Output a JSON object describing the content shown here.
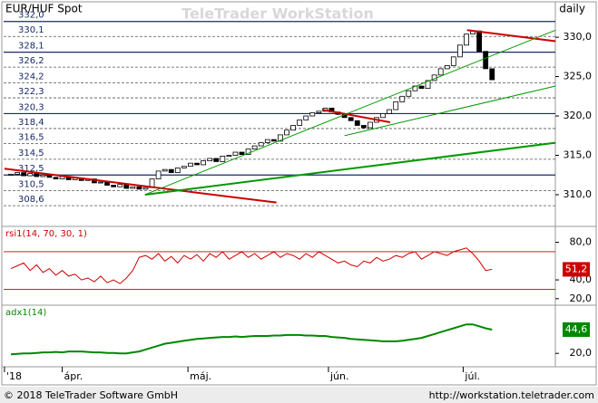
{
  "chart_data": {
    "type": "candlestick",
    "title": "EUR/HUF Spot",
    "watermark": "TeleTrader WorkStation",
    "interval": "daily",
    "footer_left": "© 2018 TeleTrader Software GmbH",
    "footer_right": "http://workstation.teletrader.com",
    "open": [
      312.5,
      312.6,
      312.8,
      312.4,
      312.7,
      312.3,
      312.5,
      312.2,
      312.0,
      312.3,
      311.9,
      312.1,
      311.8,
      312.0,
      311.5,
      311.6,
      311.2,
      311.0,
      311.3,
      310.8,
      311.0,
      310.7,
      310.9,
      312.0,
      313.0,
      313.2,
      312.8,
      313.4,
      313.6,
      314.0,
      313.8,
      314.3,
      314.6,
      314.2,
      314.9,
      315.0,
      315.4,
      315.1,
      315.8,
      316.2,
      316.6,
      317.0,
      316.8,
      317.6,
      318.2,
      318.8,
      319.5,
      320.0,
      320.4,
      320.6,
      321.0,
      320.5,
      320.2,
      319.8,
      319.4,
      318.8,
      318.5,
      319.2,
      319.8,
      320.3,
      320.8,
      321.8,
      322.5,
      323.2,
      323.8,
      323.5,
      324.5,
      325.2,
      326.0,
      326.4,
      327.5,
      329.0,
      330.4,
      330.8,
      328.2,
      326.0
    ],
    "close": [
      312.6,
      312.8,
      312.4,
      312.7,
      312.3,
      312.5,
      312.2,
      312.0,
      312.3,
      311.9,
      312.1,
      311.8,
      312.0,
      311.5,
      311.6,
      311.2,
      311.0,
      311.3,
      310.8,
      311.0,
      310.7,
      310.9,
      312.0,
      313.0,
      313.2,
      312.8,
      313.4,
      313.6,
      314.0,
      313.8,
      314.3,
      314.6,
      314.2,
      314.9,
      315.0,
      315.4,
      315.1,
      315.8,
      316.2,
      316.6,
      317.0,
      316.8,
      317.6,
      318.2,
      318.8,
      319.5,
      320.0,
      320.4,
      320.6,
      321.0,
      320.5,
      320.2,
      319.8,
      319.4,
      318.8,
      318.5,
      319.2,
      319.8,
      320.3,
      320.8,
      321.8,
      322.5,
      323.2,
      323.8,
      323.5,
      324.5,
      325.2,
      326.0,
      326.4,
      327.5,
      329.0,
      330.4,
      330.8,
      328.2,
      326.0,
      324.6
    ],
    "ylim": [
      306.2,
      334.5
    ],
    "yticks": [
      {
        "value": 330,
        "label": "330,0"
      },
      {
        "value": 325,
        "label": "325,0"
      },
      {
        "value": 320,
        "label": "320,0"
      },
      {
        "value": 315,
        "label": "315,0"
      },
      {
        "value": 310,
        "label": "310,0"
      }
    ],
    "levels": [
      {
        "value": 332.0,
        "label": "332,0"
      },
      {
        "value": 330.1,
        "label": "330,1"
      },
      {
        "value": 328.1,
        "label": "328,1"
      },
      {
        "value": 326.2,
        "label": "326,2"
      },
      {
        "value": 324.2,
        "label": "324,2"
      },
      {
        "value": 322.3,
        "label": "322,3"
      },
      {
        "value": 320.3,
        "label": "320,3"
      },
      {
        "value": 318.4,
        "label": "318,4"
      },
      {
        "value": 316.5,
        "label": "316,5"
      },
      {
        "value": 314.5,
        "label": "314,5"
      },
      {
        "value": 312.5,
        "label": "312,5"
      },
      {
        "value": 310.5,
        "label": "310,5"
      },
      {
        "value": 308.6,
        "label": "308,6"
      }
    ],
    "level_styles": [
      "solid",
      "dashed",
      "solid",
      "dashed",
      "dashed",
      "dashed",
      "solid",
      "dashed",
      "dashed",
      "dashed",
      "solid",
      "dashed",
      "dashed"
    ],
    "trendlines": [
      {
        "color": "#cc0000",
        "width": 2,
        "x": [
          -1,
          41.4
        ],
        "y": [
          313.3,
          309.0
        ]
      },
      {
        "color": "#cc0000",
        "width": 2,
        "x": [
          48.5,
          59.1
        ],
        "y": [
          320.8,
          319.2
        ]
      },
      {
        "color": "#cc0000",
        "width": 2,
        "x": [
          71.1,
          84.9
        ],
        "y": [
          330.9,
          329.5
        ]
      },
      {
        "color": "#009900",
        "width": 1,
        "x": [
          20.9,
          84.9
        ],
        "y": [
          310.0,
          330.9
        ]
      },
      {
        "color": "#009900",
        "width": 1,
        "x": [
          52.0,
          84.9
        ],
        "y": [
          317.5,
          323.8
        ]
      },
      {
        "color": "#009900",
        "width": 2,
        "x": [
          20.9,
          84.9
        ],
        "y": [
          310.0,
          316.6
        ]
      }
    ],
    "month_labels": [
      "'18",
      "ápr.",
      "máj.",
      "jún.",
      "júl."
    ],
    "month_index": [
      -1,
      8,
      27.6,
      49.5,
      70.5
    ],
    "rsi": {
      "name": "rsi1(14, 70, 30, 1)",
      "color": "#cc0000",
      "values": [
        52,
        55,
        58,
        50,
        56,
        48,
        52,
        45,
        50,
        44,
        46,
        40,
        42,
        38,
        44,
        37,
        40,
        36,
        42,
        50,
        64,
        66,
        62,
        68,
        60,
        65,
        58,
        66,
        62,
        67,
        60,
        68,
        64,
        70,
        62,
        66,
        70,
        64,
        68,
        62,
        66,
        70,
        64,
        68,
        66,
        62,
        68,
        64,
        70,
        66,
        62,
        58,
        60,
        56,
        54,
        60,
        58,
        64,
        60,
        62,
        66,
        64,
        68,
        70,
        62,
        66,
        70,
        68,
        66,
        70,
        72,
        74,
        68,
        60,
        50,
        51.2
      ],
      "last_label": "51,2",
      "ylim": [
        15,
        95
      ],
      "yticks": [
        {
          "value": 80,
          "label": "80,0"
        },
        {
          "value": 40,
          "label": "40,0"
        },
        {
          "value": 20,
          "label": "20,0"
        }
      ],
      "bands": [
        70,
        30
      ]
    },
    "adx": {
      "name": "adx1(14)",
      "color": "#008800",
      "values": [
        19,
        19.5,
        20,
        20,
        20.5,
        21,
        21,
        21.5,
        21,
        22,
        22,
        22,
        21.5,
        21,
        21,
        20.5,
        20.5,
        20,
        20,
        21,
        22,
        24,
        26,
        28,
        30,
        31,
        32,
        33,
        34,
        35,
        35.5,
        36,
        36.5,
        37,
        37,
        37.5,
        37,
        37.5,
        38,
        38,
        38,
        38.5,
        38.5,
        39,
        39,
        39,
        38.5,
        38.5,
        38,
        38,
        37,
        36.5,
        36,
        35,
        34.5,
        34,
        33.5,
        33,
        32.5,
        32.5,
        32.5,
        33,
        34,
        35,
        36,
        38,
        40,
        42,
        44,
        46,
        48,
        50,
        50,
        48,
        46,
        44.6
      ],
      "last_label": "44,6",
      "ylim": [
        8,
        68
      ],
      "yticks": [
        {
          "value": 20,
          "label": "20,0"
        }
      ]
    }
  }
}
